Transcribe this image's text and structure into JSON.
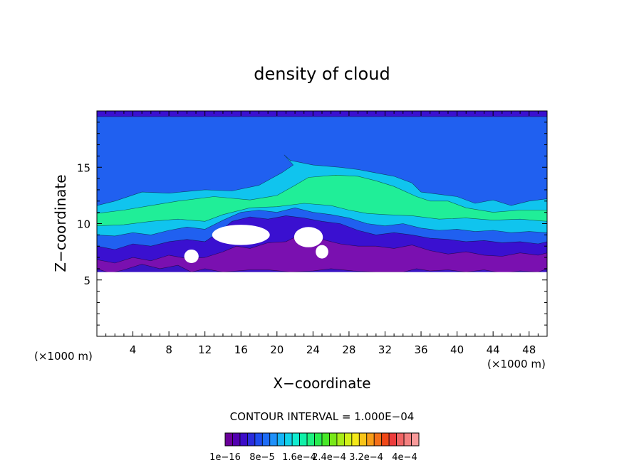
{
  "chart_data": {
    "type": "heatmap",
    "title": "density of cloud",
    "xlabel": "X−coordinate",
    "ylabel": "Z−coordinate",
    "x_unit_left": "(×1000 m)",
    "x_unit_right": "(×1000 m)",
    "xlim": [
      0,
      50
    ],
    "ylim": [
      0,
      20
    ],
    "x_ticks": [
      4,
      8,
      12,
      16,
      20,
      24,
      28,
      32,
      36,
      40,
      44,
      48
    ],
    "y_ticks": [
      5,
      10,
      15
    ],
    "contour_interval_label": "CONTOUR INTERVAL = 1.000E−04",
    "colorbar_labels": [
      "1e−16",
      "8e−5",
      "1.6e−4",
      "2.4e−4",
      "3.2e−4",
      "4e−4"
    ],
    "colorbar_colors": [
      "#6a009a",
      "#5200b0",
      "#3c0cc8",
      "#2a2cdc",
      "#1e4cf0",
      "#1e6cf6",
      "#1e90fa",
      "#16b4f6",
      "#10d2ea",
      "#10ecd0",
      "#10f0a8",
      "#1ef080",
      "#28ec50",
      "#48e828",
      "#78e818",
      "#a8ec18",
      "#d2f018",
      "#f4e818",
      "#f8c418",
      "#f89c18",
      "#f47018",
      "#f04818",
      "#ec3c3c",
      "#f06464",
      "#f48080",
      "#f89a9a"
    ],
    "field_layers": [
      {
        "level": 1,
        "color": "#7a10b0",
        "points": [
          [
            0,
            6.0
          ],
          [
            1.5,
            5.6
          ],
          [
            3,
            5.9
          ],
          [
            5,
            6.4
          ],
          [
            7,
            6.0
          ],
          [
            9,
            6.3
          ],
          [
            10.5,
            5.7
          ],
          [
            12,
            6.0
          ],
          [
            14,
            5.7
          ],
          [
            17,
            5.9
          ],
          [
            19,
            5.9
          ],
          [
            21.5,
            5.7
          ],
          [
            24,
            5.8
          ],
          [
            26,
            6.0
          ],
          [
            28.5,
            5.8
          ],
          [
            31,
            5.7
          ],
          [
            34,
            5.7
          ],
          [
            35.5,
            6.0
          ],
          [
            37,
            5.8
          ],
          [
            39,
            5.9
          ],
          [
            41,
            5.7
          ],
          [
            43,
            5.9
          ],
          [
            45,
            5.6
          ],
          [
            47,
            5.8
          ],
          [
            49,
            5.7
          ],
          [
            50,
            6.0
          ],
          [
            50,
            20
          ],
          [
            0,
            20
          ]
        ]
      },
      {
        "level": 2,
        "color": "#3a10d0",
        "points": [
          [
            0,
            6.8
          ],
          [
            2,
            6.5
          ],
          [
            4,
            7.0
          ],
          [
            6,
            6.7
          ],
          [
            8,
            7.2
          ],
          [
            10,
            6.9
          ],
          [
            12,
            7.0
          ],
          [
            14,
            7.5
          ],
          [
            15.5,
            8.0
          ],
          [
            17,
            7.8
          ],
          [
            19,
            8.3
          ],
          [
            21,
            8.4
          ],
          [
            22,
            8.8
          ],
          [
            23,
            8.4
          ],
          [
            25,
            8.6
          ],
          [
            27,
            8.2
          ],
          [
            29,
            8.0
          ],
          [
            31,
            8.0
          ],
          [
            33,
            7.8
          ],
          [
            35,
            8.1
          ],
          [
            37,
            7.6
          ],
          [
            39,
            7.3
          ],
          [
            41,
            7.5
          ],
          [
            43,
            7.2
          ],
          [
            45,
            7.1
          ],
          [
            47,
            7.4
          ],
          [
            49,
            7.2
          ],
          [
            50,
            7.4
          ],
          [
            50,
            20
          ],
          [
            0,
            20
          ]
        ]
      },
      {
        "level": 3,
        "color": "#2060f0",
        "points": [
          [
            0,
            8.0
          ],
          [
            2,
            7.7
          ],
          [
            4,
            8.2
          ],
          [
            6,
            8.0
          ],
          [
            8,
            8.4
          ],
          [
            10,
            8.6
          ],
          [
            12,
            8.4
          ],
          [
            13.5,
            9.2
          ],
          [
            15,
            10.2
          ],
          [
            17,
            10.6
          ],
          [
            19,
            10.4
          ],
          [
            21,
            10.7
          ],
          [
            23,
            10.5
          ],
          [
            25,
            10.2
          ],
          [
            27,
            10.0
          ],
          [
            29,
            9.4
          ],
          [
            31,
            9.0
          ],
          [
            33,
            9.2
          ],
          [
            35,
            9.0
          ],
          [
            37,
            8.7
          ],
          [
            39,
            8.6
          ],
          [
            41,
            8.4
          ],
          [
            43,
            8.5
          ],
          [
            45,
            8.3
          ],
          [
            47,
            8.4
          ],
          [
            49,
            8.2
          ],
          [
            50,
            8.4
          ],
          [
            50,
            19.5
          ],
          [
            0,
            19.5
          ]
        ]
      },
      {
        "level": 4,
        "color": "#10c4ee",
        "points": [
          [
            0,
            9.0
          ],
          [
            2,
            8.9
          ],
          [
            4,
            9.2
          ],
          [
            6,
            9.0
          ],
          [
            8,
            9.4
          ],
          [
            10,
            9.7
          ],
          [
            12,
            9.5
          ],
          [
            14,
            10.3
          ],
          [
            16,
            11.0
          ],
          [
            18,
            11.2
          ],
          [
            20,
            11.0
          ],
          [
            22,
            11.4
          ],
          [
            24,
            11.0
          ],
          [
            26,
            10.8
          ],
          [
            28,
            10.5
          ],
          [
            30,
            10.0
          ],
          [
            32,
            9.8
          ],
          [
            34,
            10.0
          ],
          [
            36,
            9.6
          ],
          [
            38,
            9.4
          ],
          [
            40,
            9.5
          ],
          [
            42,
            9.3
          ],
          [
            44,
            9.4
          ],
          [
            46,
            9.2
          ],
          [
            48,
            9.3
          ],
          [
            50,
            9.2
          ],
          [
            50,
            12.2
          ],
          [
            48,
            12.0
          ],
          [
            46,
            11.6
          ],
          [
            44,
            12.1
          ],
          [
            42,
            11.8
          ],
          [
            40,
            12.4
          ],
          [
            38,
            12.6
          ],
          [
            36,
            12.8
          ],
          [
            35,
            13.6
          ],
          [
            33,
            14.2
          ],
          [
            31,
            14.5
          ],
          [
            29,
            14.8
          ],
          [
            27,
            15.0
          ],
          [
            24,
            15.2
          ],
          [
            21.5,
            15.6
          ],
          [
            20.8,
            16.1
          ],
          [
            21.8,
            15.2
          ],
          [
            20.5,
            14.5
          ],
          [
            18,
            13.4
          ],
          [
            15,
            12.9
          ],
          [
            12,
            13.0
          ],
          [
            8,
            12.7
          ],
          [
            5,
            12.8
          ],
          [
            2,
            12.0
          ],
          [
            0,
            11.6
          ]
        ]
      },
      {
        "level": 5,
        "color": "#20ee98",
        "points": [
          [
            0,
            9.8
          ],
          [
            3,
            9.9
          ],
          [
            6,
            10.2
          ],
          [
            9,
            10.4
          ],
          [
            12,
            10.2
          ],
          [
            14,
            10.8
          ],
          [
            17,
            11.4
          ],
          [
            20,
            11.5
          ],
          [
            23,
            11.8
          ],
          [
            26,
            11.6
          ],
          [
            28,
            11.2
          ],
          [
            30,
            10.9
          ],
          [
            32,
            10.8
          ],
          [
            35,
            10.7
          ],
          [
            38,
            10.4
          ],
          [
            41,
            10.5
          ],
          [
            44,
            10.3
          ],
          [
            47,
            10.4
          ],
          [
            50,
            10.2
          ],
          [
            50,
            11.2
          ],
          [
            47,
            11.2
          ],
          [
            44,
            11.0
          ],
          [
            41,
            11.4
          ],
          [
            39,
            12.0
          ],
          [
            37,
            12.0
          ],
          [
            35.5,
            12.4
          ],
          [
            33,
            13.3
          ],
          [
            31,
            13.8
          ],
          [
            29,
            14.2
          ],
          [
            26.5,
            14.3
          ],
          [
            23.5,
            14.1
          ],
          [
            22,
            13.4
          ],
          [
            20,
            12.5
          ],
          [
            17,
            12.1
          ],
          [
            13,
            12.4
          ],
          [
            9,
            12.0
          ],
          [
            6,
            11.6
          ],
          [
            3,
            11.2
          ],
          [
            0,
            10.9
          ]
        ]
      }
    ],
    "bottom_blank_below_z": 5.7
  }
}
